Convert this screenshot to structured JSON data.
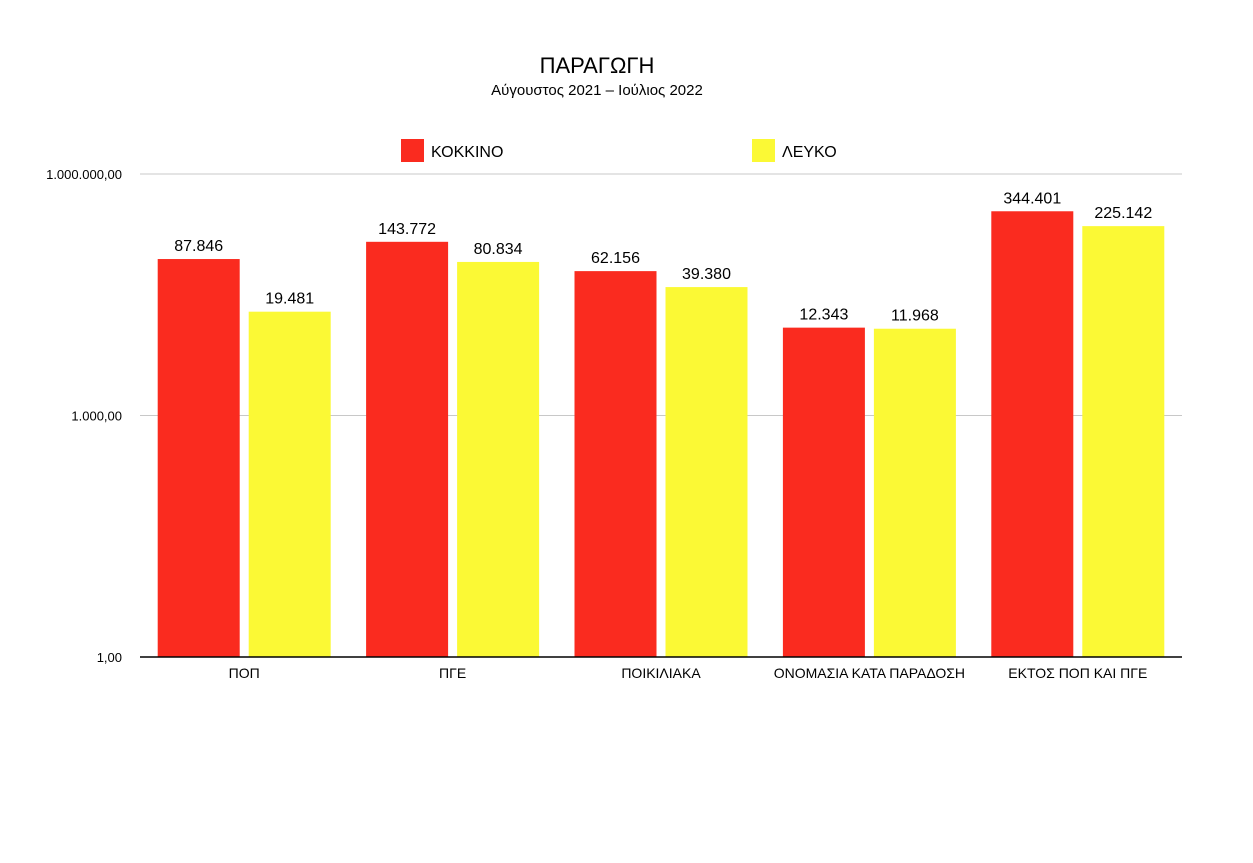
{
  "chart_data": {
    "type": "bar",
    "title": "ΠΑΡΑΓΩΓΗ",
    "subtitle": "Αύγουστος 2021 – Ιούλιος 2022",
    "xlabel": "",
    "ylabel": "",
    "yscale": "log",
    "ylim": [
      1,
      1000000
    ],
    "yticks": [
      1,
      1000,
      1000000
    ],
    "ytick_labels": [
      "1,00",
      "1.000,00",
      "1.000.000,00"
    ],
    "grid": true,
    "legend_position": "top",
    "categories": [
      "ΠΟΠ",
      "ΠΓΕ",
      "ΠΟΙΚΙΛΙΑΚΑ",
      "ΟΝΟΜΑΣΙΑ ΚΑΤΑ ΠΑΡΑΔΟΣΗ",
      "ΕΚΤΟΣ ΠΟΠ ΚΑΙ ΠΓΕ"
    ],
    "series": [
      {
        "name": "ΚΟΚΚΙΝΟ",
        "color": "#fa2b1f",
        "values": [
          87846,
          143772,
          62156,
          12343,
          344401
        ],
        "labels": [
          "87.846",
          "143.772",
          "62.156",
          "12.343",
          "344.401"
        ]
      },
      {
        "name": "ΛΕΥΚΟ",
        "color": "#fbf935",
        "values": [
          19481,
          80834,
          39380,
          11968,
          225142
        ],
        "labels": [
          "19.481",
          "80.834",
          "39.380",
          "11.968",
          "225.142"
        ]
      }
    ]
  }
}
